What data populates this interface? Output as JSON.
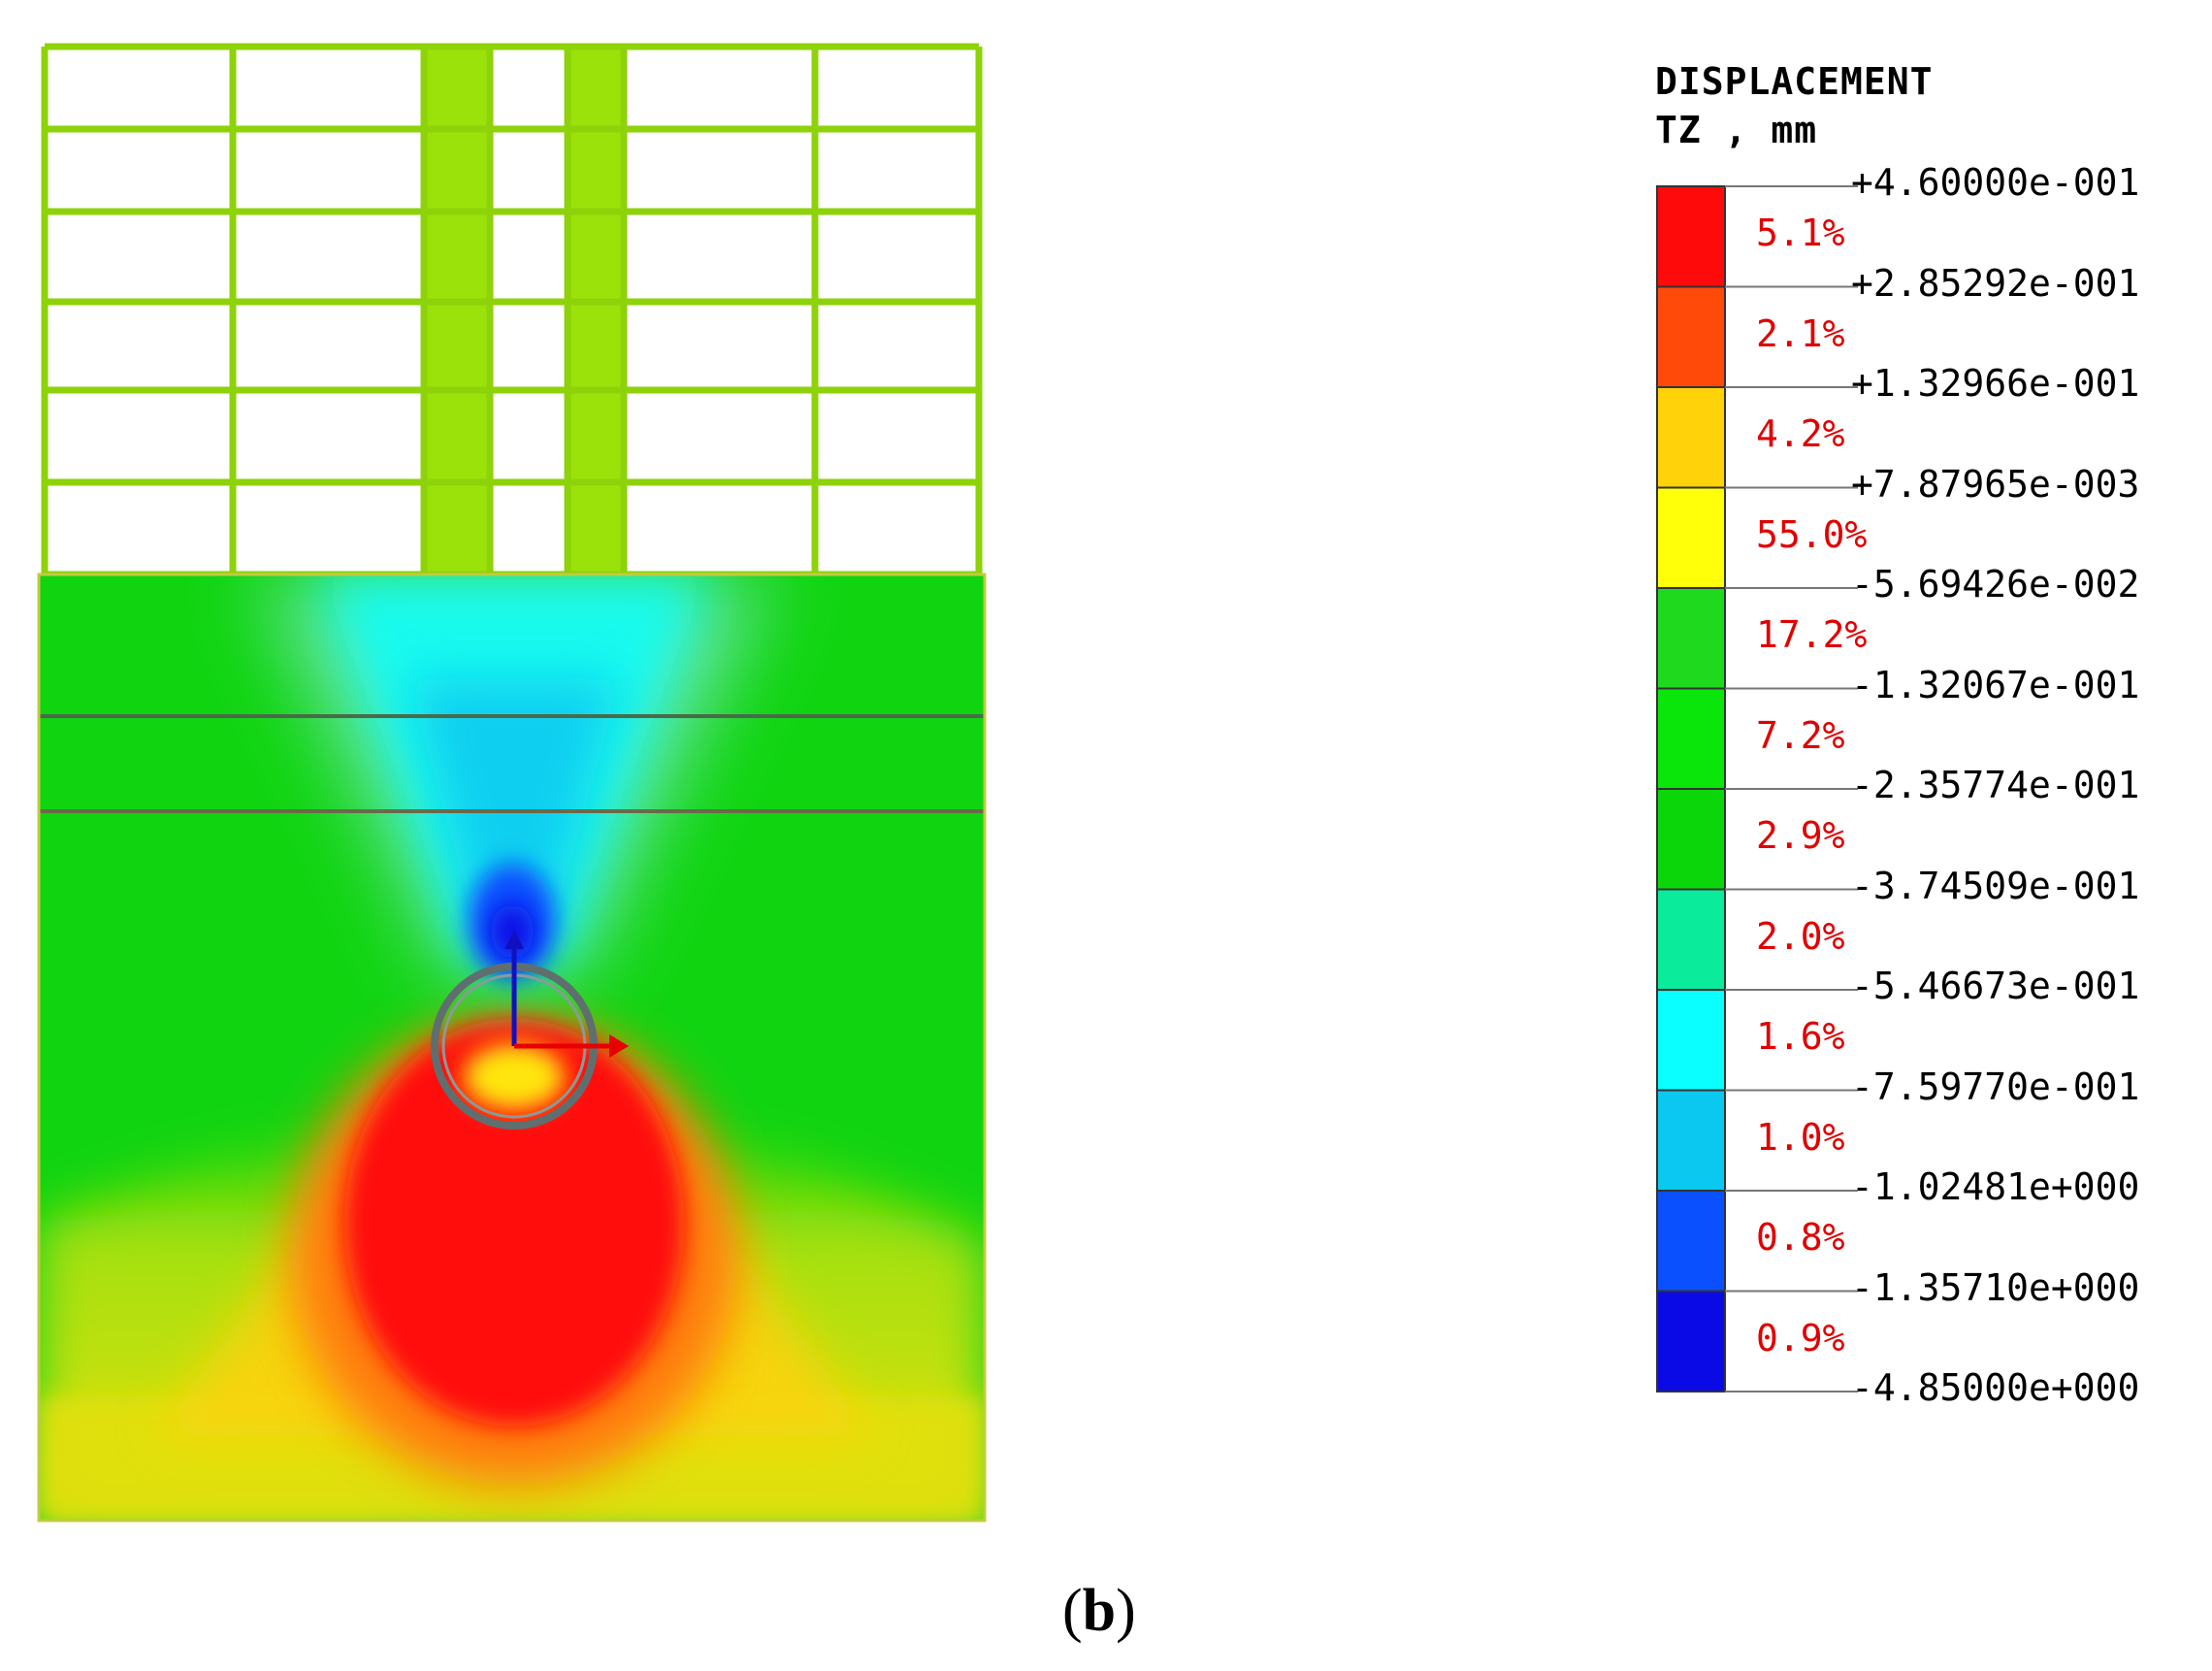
{
  "legend": {
    "title_line1": "DISPLACEMENT",
    "title_line2": "TZ , mm",
    "values": [
      "+4.60000e-001",
      "+2.85292e-001",
      "+1.32966e-001",
      "+7.87965e-003",
      "-5.69426e-002",
      "-1.32067e-001",
      "-2.35774e-001",
      "-3.74509e-001",
      "-5.46673e-001",
      "-7.59770e-001",
      "-1.02481e+000",
      "-1.35710e+000",
      "-4.85000e+000"
    ],
    "bands": [
      {
        "percent": "5.1%",
        "color": "#ff0a0a"
      },
      {
        "percent": "2.1%",
        "color": "#ff4a0a"
      },
      {
        "percent": "4.2%",
        "color": "#ffd20a"
      },
      {
        "percent": "55.0%",
        "color": "#ffff0a"
      },
      {
        "percent": "17.2%",
        "color": "#1fd91f"
      },
      {
        "percent": "7.2%",
        "color": "#0ae60a"
      },
      {
        "percent": "2.9%",
        "color": "#0ad60a"
      },
      {
        "percent": "2.0%",
        "color": "#0aeb9b"
      },
      {
        "percent": "1.6%",
        "color": "#0affff"
      },
      {
        "percent": "1.0%",
        "color": "#0ac8f0"
      },
      {
        "percent": "0.8%",
        "color": "#0a50ff"
      },
      {
        "percent": "0.9%",
        "color": "#0a0ae6"
      }
    ]
  },
  "caption": {
    "open": "(",
    "letter": "b",
    "close": ")"
  },
  "colors": {
    "frame": "#8ed20a",
    "wall": "#9be10a",
    "soil": "#11d411",
    "tunnel_ring": "#5f6f6f",
    "axis_x": "#e80000",
    "axis_y": "#1010c0"
  }
}
